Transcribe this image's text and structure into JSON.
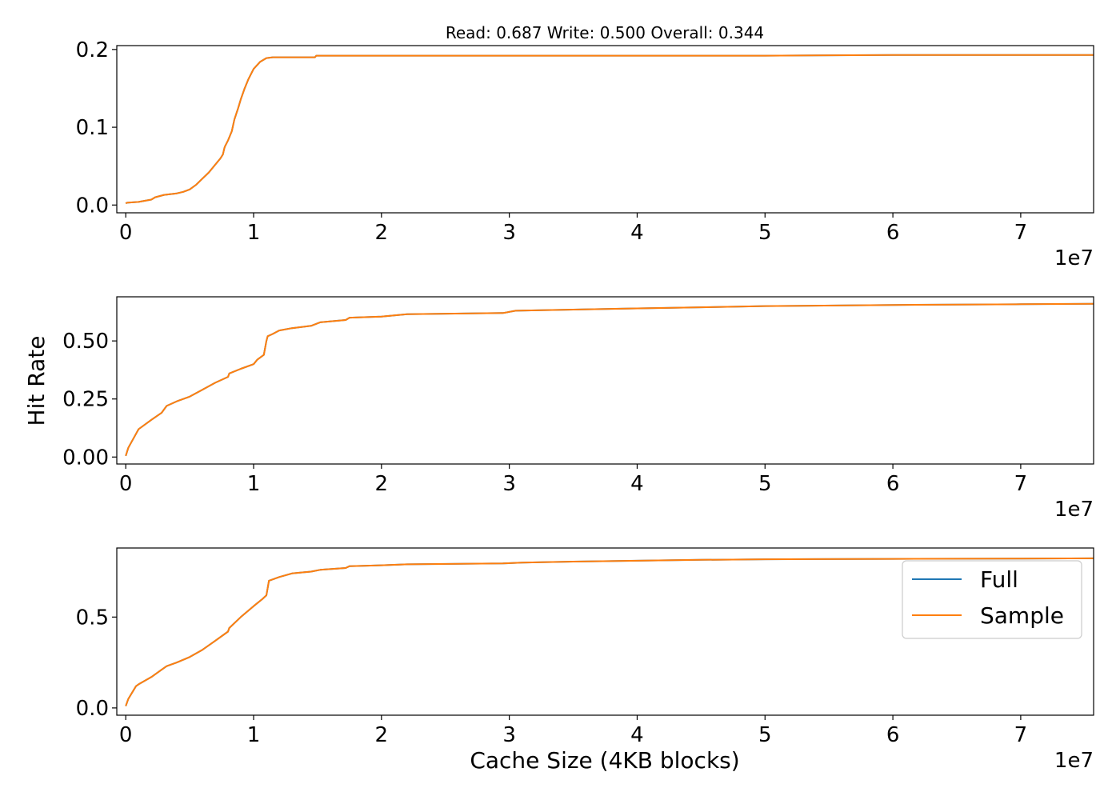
{
  "chart_data": {
    "type": "line",
    "title": "Read: 0.687 Write: 0.500 Overall: 0.344",
    "xlabel": "Cache Size (4KB blocks)",
    "ylabel": "Hit Rate",
    "x_offset_label": "1e7",
    "x_ticks": [
      "0",
      "1",
      "2",
      "3",
      "4",
      "5",
      "6",
      "7"
    ],
    "legend": {
      "position": "lower-right",
      "entries": [
        "Full",
        "Sample"
      ]
    },
    "colors": {
      "Full": "#1f77b4",
      "Sample": "#ff7f0e"
    },
    "panels": [
      {
        "xlim": [
          -700000.0,
          75700000.0
        ],
        "ylim": [
          -0.01,
          0.205
        ],
        "y_ticks": [
          "0.0",
          "0.1",
          "0.2"
        ],
        "y_tick_values": [
          0.0,
          0.1,
          0.2
        ],
        "x": [
          0,
          100000,
          1000000,
          2000000,
          2300000,
          3000000,
          4000000,
          4500000,
          5000000,
          5500000,
          6000000,
          6500000,
          7000000,
          7400000,
          7600000,
          7700000,
          7750000,
          8000000,
          8300000,
          8500000,
          8800000,
          9000000,
          9300000,
          9600000,
          10000000,
          10500000,
          11000000,
          11500000,
          12000000,
          14800000,
          14900000,
          20000000,
          30000000,
          40000000,
          50000000,
          60000000,
          70000000,
          75700000
        ],
        "series": [
          {
            "name": "Full",
            "values": [
              0.002,
              0.003,
              0.004,
              0.007,
              0.01,
              0.013,
              0.015,
              0.017,
              0.02,
              0.026,
              0.034,
              0.042,
              0.052,
              0.06,
              0.065,
              0.072,
              0.075,
              0.083,
              0.095,
              0.11,
              0.125,
              0.136,
              0.15,
              0.162,
              0.175,
              0.184,
              0.189,
              0.19,
              0.19,
              0.19,
              0.192,
              0.192,
              0.192,
              0.192,
              0.192,
              0.193,
              0.193,
              0.193
            ]
          },
          {
            "name": "Sample",
            "values": [
              0.002,
              0.003,
              0.004,
              0.007,
              0.01,
              0.013,
              0.015,
              0.017,
              0.02,
              0.026,
              0.034,
              0.042,
              0.052,
              0.06,
              0.065,
              0.072,
              0.075,
              0.083,
              0.095,
              0.11,
              0.125,
              0.136,
              0.15,
              0.162,
              0.175,
              0.184,
              0.189,
              0.19,
              0.19,
              0.19,
              0.192,
              0.192,
              0.192,
              0.192,
              0.192,
              0.193,
              0.193,
              0.193
            ]
          }
        ]
      },
      {
        "xlim": [
          -700000.0,
          75700000.0
        ],
        "ylim": [
          -0.03,
          0.69
        ],
        "y_ticks": [
          "0.00",
          "0.25",
          "0.50"
        ],
        "y_tick_values": [
          0.0,
          0.25,
          0.5
        ],
        "x": [
          0,
          200000,
          800000,
          1000000,
          2000000,
          2800000,
          3200000,
          4000000,
          5000000,
          6000000,
          7000000,
          8000000,
          8100000,
          9000000,
          10000000,
          10300000,
          10800000,
          11000000,
          11100000,
          11500000,
          12000000,
          13000000,
          14500000,
          15200000,
          17200000,
          17500000,
          20000000,
          22000000,
          29500000,
          30500000,
          35000000,
          40000000,
          45000000,
          50000000,
          60000000,
          70000000,
          75700000
        ],
        "series": [
          {
            "name": "Full",
            "values": [
              0.005,
              0.04,
              0.1,
              0.12,
              0.16,
              0.19,
              0.22,
              0.24,
              0.26,
              0.29,
              0.32,
              0.345,
              0.36,
              0.38,
              0.4,
              0.42,
              0.44,
              0.5,
              0.52,
              0.53,
              0.545,
              0.555,
              0.565,
              0.58,
              0.59,
              0.6,
              0.605,
              0.615,
              0.62,
              0.63,
              0.635,
              0.64,
              0.645,
              0.65,
              0.655,
              0.658,
              0.66
            ]
          },
          {
            "name": "Sample",
            "values": [
              0.005,
              0.04,
              0.1,
              0.12,
              0.16,
              0.19,
              0.22,
              0.24,
              0.26,
              0.29,
              0.32,
              0.345,
              0.36,
              0.38,
              0.4,
              0.42,
              0.44,
              0.5,
              0.52,
              0.53,
              0.545,
              0.555,
              0.565,
              0.58,
              0.59,
              0.6,
              0.605,
              0.615,
              0.62,
              0.63,
              0.635,
              0.64,
              0.645,
              0.65,
              0.655,
              0.658,
              0.66
            ]
          }
        ]
      },
      {
        "xlim": [
          -700000.0,
          75700000.0
        ],
        "ylim": [
          -0.04,
          0.88
        ],
        "y_ticks": [
          "0.0",
          "0.5"
        ],
        "y_tick_values": [
          0.0,
          0.5
        ],
        "x": [
          0,
          200000,
          800000,
          1000000,
          2000000,
          2800000,
          3200000,
          4000000,
          5000000,
          6000000,
          7000000,
          8000000,
          8100000,
          9000000,
          10000000,
          10700000,
          11000000,
          11200000,
          12000000,
          13000000,
          14500000,
          15200000,
          17200000,
          17500000,
          20000000,
          22000000,
          29500000,
          31000000,
          35000000,
          40000000,
          45000000,
          50000000,
          60000000,
          70000000,
          75700000
        ],
        "series": [
          {
            "name": "Full",
            "values": [
              0.01,
              0.05,
              0.12,
              0.13,
              0.17,
              0.21,
              0.23,
              0.25,
              0.28,
              0.32,
              0.37,
              0.42,
              0.44,
              0.5,
              0.56,
              0.6,
              0.62,
              0.7,
              0.72,
              0.74,
              0.75,
              0.76,
              0.77,
              0.78,
              0.785,
              0.79,
              0.795,
              0.8,
              0.805,
              0.81,
              0.815,
              0.818,
              0.82,
              0.822,
              0.823
            ]
          },
          {
            "name": "Sample",
            "values": [
              0.01,
              0.05,
              0.12,
              0.13,
              0.17,
              0.21,
              0.23,
              0.25,
              0.28,
              0.32,
              0.37,
              0.42,
              0.44,
              0.5,
              0.56,
              0.6,
              0.62,
              0.7,
              0.72,
              0.74,
              0.75,
              0.76,
              0.77,
              0.78,
              0.785,
              0.79,
              0.795,
              0.8,
              0.805,
              0.81,
              0.815,
              0.818,
              0.82,
              0.822,
              0.823
            ]
          }
        ]
      }
    ]
  }
}
